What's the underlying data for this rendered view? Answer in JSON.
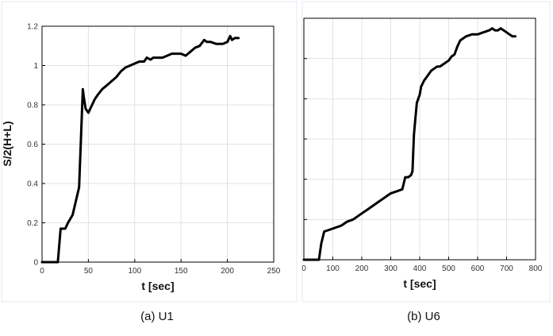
{
  "chart_data": [
    {
      "type": "line",
      "caption": "(a)  U1",
      "xlabel": "t [sec]",
      "ylabel": "S/2(H+L)",
      "xlim": [
        0,
        250
      ],
      "ylim": [
        0,
        1.2
      ],
      "xticks": [
        0,
        50,
        100,
        150,
        200,
        250
      ],
      "yticks": [
        0,
        0.2,
        0.4,
        0.6,
        0.8,
        1,
        1.2
      ],
      "ytick_labels": [
        "0",
        "0.2",
        "0.4",
        "0.6",
        "0.8",
        "1",
        "1.2"
      ],
      "grid": true,
      "series": [
        {
          "x": [
            0,
            10,
            17,
            20,
            25,
            28,
            33,
            40,
            44,
            45,
            47,
            50,
            54,
            57,
            60,
            65,
            70,
            75,
            80,
            85,
            90,
            95,
            100,
            105,
            110,
            113,
            117,
            120,
            125,
            130,
            135,
            140,
            145,
            150,
            155,
            160,
            165,
            170,
            175,
            178,
            182,
            188,
            195,
            200,
            203,
            205,
            208,
            212
          ],
          "y": [
            0,
            0,
            0,
            0.17,
            0.17,
            0.2,
            0.24,
            0.38,
            0.88,
            0.84,
            0.78,
            0.76,
            0.8,
            0.83,
            0.85,
            0.88,
            0.9,
            0.92,
            0.94,
            0.97,
            0.99,
            1.0,
            1.01,
            1.02,
            1.02,
            1.04,
            1.03,
            1.04,
            1.04,
            1.04,
            1.05,
            1.06,
            1.06,
            1.06,
            1.05,
            1.07,
            1.09,
            1.1,
            1.13,
            1.12,
            1.12,
            1.11,
            1.11,
            1.12,
            1.15,
            1.13,
            1.14,
            1.14
          ]
        }
      ]
    },
    {
      "type": "line",
      "caption": "(b) U6",
      "xlabel": "t [sec]",
      "ylabel": "",
      "xlim": [
        0,
        800
      ],
      "ylim": [
        0,
        1.2
      ],
      "xticks": [
        0,
        100,
        200,
        300,
        400,
        500,
        600,
        700,
        800
      ],
      "yticks": [
        0,
        0.2,
        0.4,
        0.6,
        0.8,
        1,
        1.2
      ],
      "grid": true,
      "series": [
        {
          "x": [
            0,
            40,
            52,
            60,
            70,
            90,
            110,
            130,
            150,
            170,
            200,
            220,
            240,
            260,
            280,
            290,
            300,
            320,
            340,
            345,
            350,
            360,
            370,
            375,
            380,
            385,
            390,
            400,
            405,
            415,
            420,
            430,
            440,
            450,
            460,
            470,
            480,
            490,
            500,
            510,
            520,
            530,
            540,
            560,
            580,
            600,
            620,
            640,
            650,
            660,
            670,
            680,
            690,
            700,
            710,
            720,
            730
          ],
          "y": [
            0,
            0,
            0,
            0.08,
            0.14,
            0.15,
            0.16,
            0.17,
            0.19,
            0.2,
            0.23,
            0.25,
            0.27,
            0.29,
            0.31,
            0.32,
            0.33,
            0.34,
            0.35,
            0.38,
            0.41,
            0.41,
            0.42,
            0.44,
            0.62,
            0.7,
            0.78,
            0.82,
            0.86,
            0.89,
            0.9,
            0.92,
            0.94,
            0.95,
            0.96,
            0.96,
            0.97,
            0.98,
            0.99,
            1.01,
            1.02,
            1.06,
            1.09,
            1.11,
            1.12,
            1.12,
            1.13,
            1.14,
            1.15,
            1.14,
            1.14,
            1.15,
            1.14,
            1.13,
            1.12,
            1.11,
            1.11
          ]
        }
      ]
    }
  ]
}
